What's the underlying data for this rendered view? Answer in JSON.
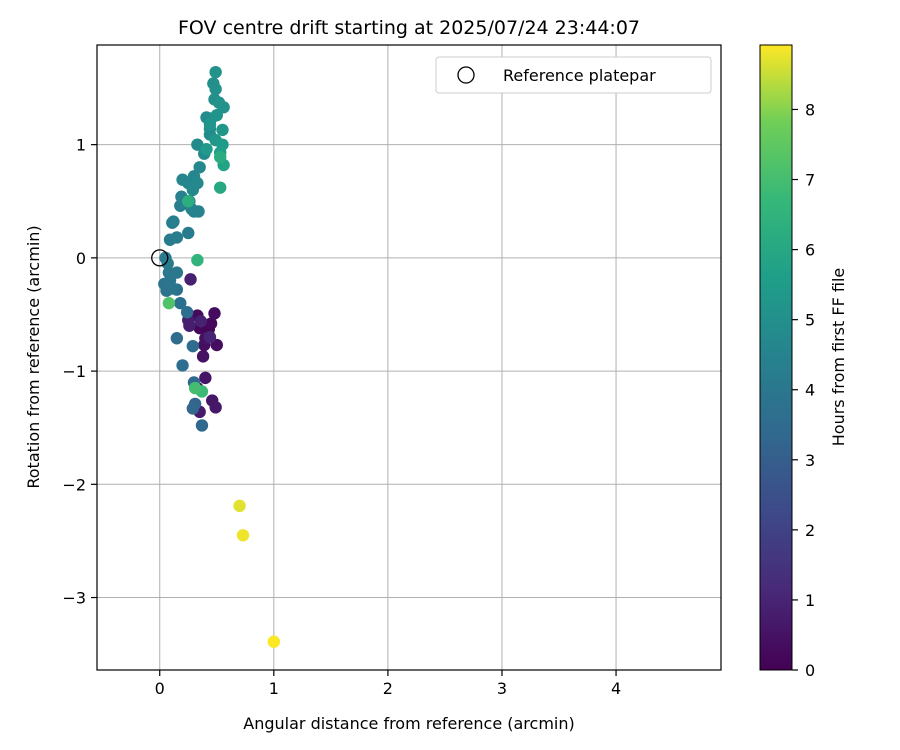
{
  "chart_data": {
    "type": "scatter",
    "title": "FOV centre drift starting at 2025/07/24 23:44:07",
    "xlabel": "Angular distance from reference (arcmin)",
    "ylabel": "Rotation from reference (arcmin)",
    "xlim": [
      -0.55,
      4.92
    ],
    "ylim": [
      -3.64,
      1.88
    ],
    "xticks": [
      "0",
      "1",
      "2",
      "3",
      "4"
    ],
    "yticks": [
      "−3",
      "−2",
      "−1",
      "0",
      "1"
    ],
    "grid": true,
    "legend": {
      "placement": "top-right",
      "entries": [
        {
          "label": "Reference platepar",
          "marker": "open-circle",
          "x": 0,
          "y": 0
        }
      ]
    },
    "colorbar": {
      "label": "Hours from first FF file",
      "colormap": "viridis",
      "range": [
        0,
        8.92
      ],
      "ticks": [
        "0",
        "1",
        "2",
        "3",
        "4",
        "5",
        "6",
        "7",
        "8"
      ]
    },
    "points": [
      {
        "x": 0.4,
        "y": -0.6,
        "c": 0.05
      },
      {
        "x": 0.43,
        "y": -0.63,
        "c": 0.1
      },
      {
        "x": 0.35,
        "y": -0.62,
        "c": 0.15
      },
      {
        "x": 0.45,
        "y": -0.58,
        "c": 0.2
      },
      {
        "x": 0.33,
        "y": -0.51,
        "c": 0.25
      },
      {
        "x": 0.48,
        "y": -0.49,
        "c": 0.3
      },
      {
        "x": 0.5,
        "y": -0.77,
        "c": 0.35
      },
      {
        "x": 0.39,
        "y": -0.77,
        "c": 0.4
      },
      {
        "x": 0.4,
        "y": -0.71,
        "c": 0.45
      },
      {
        "x": 0.38,
        "y": -0.87,
        "c": 0.5
      },
      {
        "x": 0.4,
        "y": -1.06,
        "c": 0.55
      },
      {
        "x": 0.46,
        "y": -1.26,
        "c": 0.6
      },
      {
        "x": 0.49,
        "y": -1.32,
        "c": 0.65
      },
      {
        "x": 0.33,
        "y": -1.15,
        "c": 0.7
      },
      {
        "x": 0.35,
        "y": -1.36,
        "c": 0.75
      },
      {
        "x": 0.25,
        "y": -0.55,
        "c": 0.8
      },
      {
        "x": 0.26,
        "y": -0.6,
        "c": 0.85
      },
      {
        "x": 0.27,
        "y": -0.19,
        "c": 0.9
      },
      {
        "x": 0.36,
        "y": -0.56,
        "c": 0.95
      },
      {
        "x": 0.44,
        "y": -0.7,
        "c": 1.0
      },
      {
        "x": 0.31,
        "y": -1.29,
        "c": 3.2
      },
      {
        "x": 0.29,
        "y": -1.33,
        "c": 3.3
      },
      {
        "x": 0.37,
        "y": -1.48,
        "c": 3.4
      },
      {
        "x": 0.3,
        "y": -1.1,
        "c": 3.4
      },
      {
        "x": 0.29,
        "y": -0.78,
        "c": 3.5
      },
      {
        "x": 0.15,
        "y": -0.71,
        "c": 3.5
      },
      {
        "x": 0.2,
        "y": -0.95,
        "c": 3.6
      },
      {
        "x": 0.24,
        "y": -0.48,
        "c": 3.6
      },
      {
        "x": 0.18,
        "y": -0.4,
        "c": 3.7
      },
      {
        "x": 0.15,
        "y": -0.28,
        "c": 3.7
      },
      {
        "x": 0.04,
        "y": -0.23,
        "c": 3.8
      },
      {
        "x": 0.06,
        "y": -0.29,
        "c": 3.8
      },
      {
        "x": 0.09,
        "y": -0.2,
        "c": 3.9
      },
      {
        "x": 0.11,
        "y": -0.27,
        "c": 3.9
      },
      {
        "x": 0.15,
        "y": -0.13,
        "c": 4.0
      },
      {
        "x": 0.08,
        "y": -0.13,
        "c": 4.0
      },
      {
        "x": 0.05,
        "y": 0.0,
        "c": 4.1
      },
      {
        "x": 0.07,
        "y": -0.05,
        "c": 4.1
      },
      {
        "x": 0.09,
        "y": 0.16,
        "c": 4.2
      },
      {
        "x": 0.15,
        "y": 0.18,
        "c": 4.2
      },
      {
        "x": 0.25,
        "y": 0.22,
        "c": 4.2
      },
      {
        "x": 0.12,
        "y": 0.32,
        "c": 4.3
      },
      {
        "x": 0.11,
        "y": 0.31,
        "c": 4.3
      },
      {
        "x": 0.18,
        "y": 0.46,
        "c": 4.3
      },
      {
        "x": 0.19,
        "y": 0.54,
        "c": 4.4
      },
      {
        "x": 0.23,
        "y": 0.48,
        "c": 4.4
      },
      {
        "x": 0.26,
        "y": 0.5,
        "c": 4.4
      },
      {
        "x": 0.28,
        "y": 0.43,
        "c": 4.5
      },
      {
        "x": 0.3,
        "y": 0.41,
        "c": 4.5
      },
      {
        "x": 0.34,
        "y": 0.41,
        "c": 4.5
      },
      {
        "x": 0.2,
        "y": 0.69,
        "c": 4.6
      },
      {
        "x": 0.25,
        "y": 0.66,
        "c": 4.6
      },
      {
        "x": 0.3,
        "y": 0.72,
        "c": 4.6
      },
      {
        "x": 0.33,
        "y": 0.66,
        "c": 4.7
      },
      {
        "x": 0.29,
        "y": 0.6,
        "c": 4.7
      },
      {
        "x": 0.35,
        "y": 0.8,
        "c": 4.7
      },
      {
        "x": 0.33,
        "y": 1.0,
        "c": 4.8
      },
      {
        "x": 0.39,
        "y": 0.92,
        "c": 4.8
      },
      {
        "x": 0.41,
        "y": 1.24,
        "c": 4.8
      },
      {
        "x": 0.44,
        "y": 1.14,
        "c": 4.9
      },
      {
        "x": 0.44,
        "y": 1.09,
        "c": 4.9
      },
      {
        "x": 0.45,
        "y": 1.23,
        "c": 4.9
      },
      {
        "x": 0.48,
        "y": 1.4,
        "c": 5.0
      },
      {
        "x": 0.47,
        "y": 1.54,
        "c": 5.0
      },
      {
        "x": 0.49,
        "y": 1.49,
        "c": 5.0
      },
      {
        "x": 0.49,
        "y": 1.64,
        "c": 5.1
      },
      {
        "x": 0.52,
        "y": 1.37,
        "c": 5.1
      },
      {
        "x": 0.56,
        "y": 1.33,
        "c": 5.1
      },
      {
        "x": 0.5,
        "y": 1.26,
        "c": 5.2
      },
      {
        "x": 0.44,
        "y": 1.18,
        "c": 5.2
      },
      {
        "x": 0.49,
        "y": 1.04,
        "c": 5.3
      },
      {
        "x": 0.55,
        "y": 1.13,
        "c": 5.3
      },
      {
        "x": 0.41,
        "y": 0.96,
        "c": 5.4
      },
      {
        "x": 0.55,
        "y": 1.0,
        "c": 5.5
      },
      {
        "x": 0.53,
        "y": 0.93,
        "c": 5.6
      },
      {
        "x": 0.56,
        "y": 0.82,
        "c": 5.8
      },
      {
        "x": 0.53,
        "y": 0.62,
        "c": 6.0
      },
      {
        "x": 0.53,
        "y": 0.89,
        "c": 6.2
      },
      {
        "x": 0.25,
        "y": 0.5,
        "c": 6.3
      },
      {
        "x": 0.33,
        "y": -0.02,
        "c": 6.5
      },
      {
        "x": 0.37,
        "y": -1.18,
        "c": 6.8
      },
      {
        "x": 0.31,
        "y": -1.15,
        "c": 7.0
      },
      {
        "x": 0.08,
        "y": -0.4,
        "c": 7.2
      },
      {
        "x": 0.7,
        "y": -2.19,
        "c": 8.7
      },
      {
        "x": 0.73,
        "y": -2.45,
        "c": 8.8
      },
      {
        "x": 1.0,
        "y": -3.39,
        "c": 8.9
      }
    ]
  }
}
